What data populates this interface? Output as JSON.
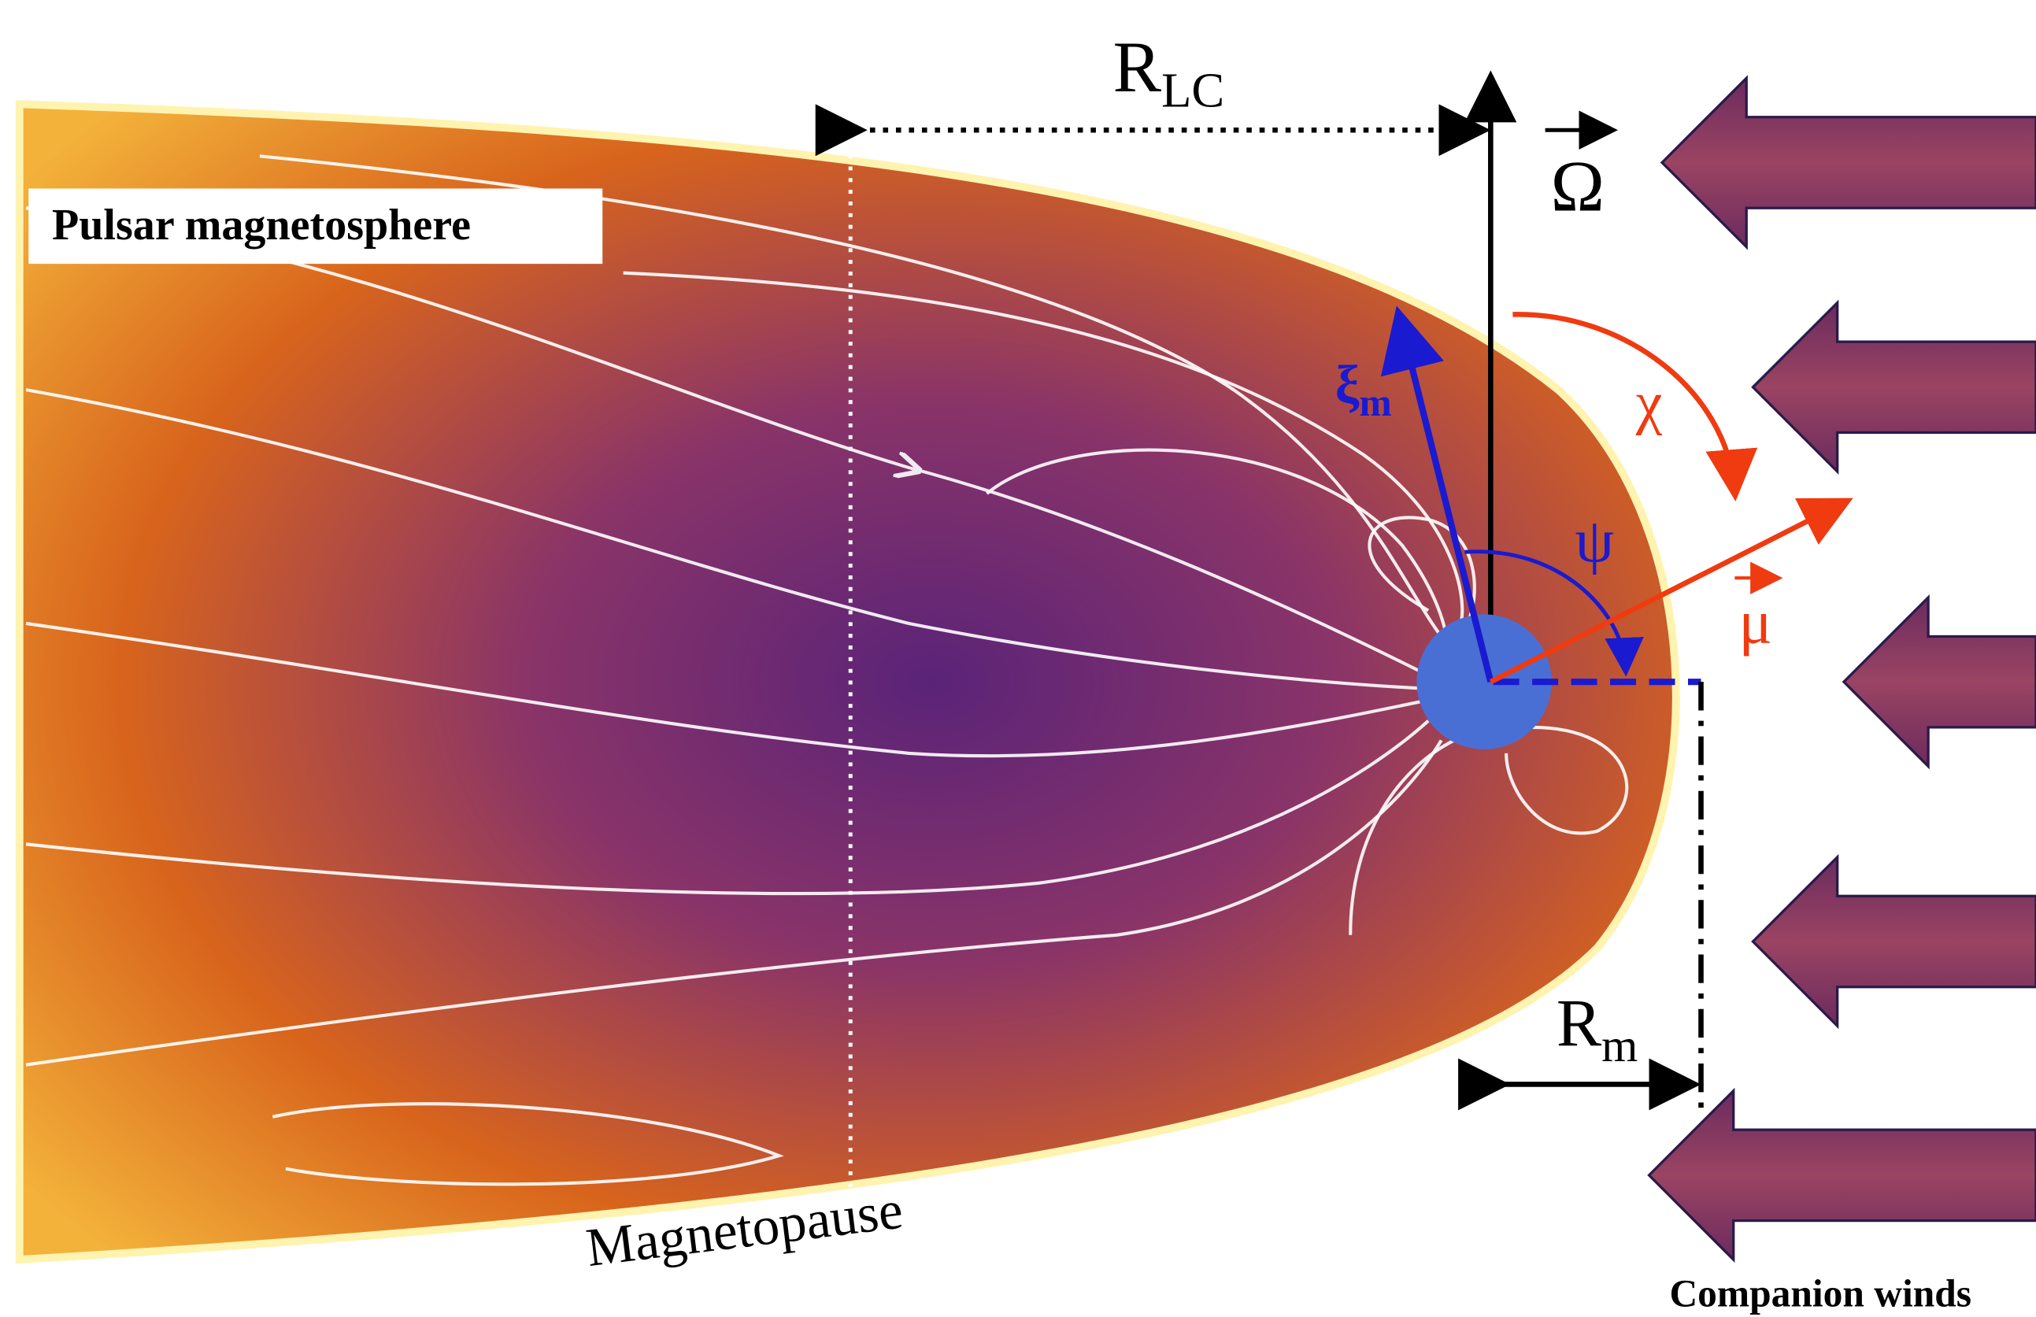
{
  "labels": {
    "magnetosphere": "Pulsar magnetosphere",
    "magnetopause": "Magnetopause",
    "winds": "Companion winds"
  },
  "symbols": {
    "light_cylinder": {
      "base": "R",
      "sub": "LC"
    },
    "omega": "Ω",
    "xi": {
      "base": "ξ",
      "sub": "m"
    },
    "chi": "χ",
    "psi": "ψ",
    "mu": "μ",
    "standoff": {
      "base": "R",
      "sub": "m"
    }
  }
}
